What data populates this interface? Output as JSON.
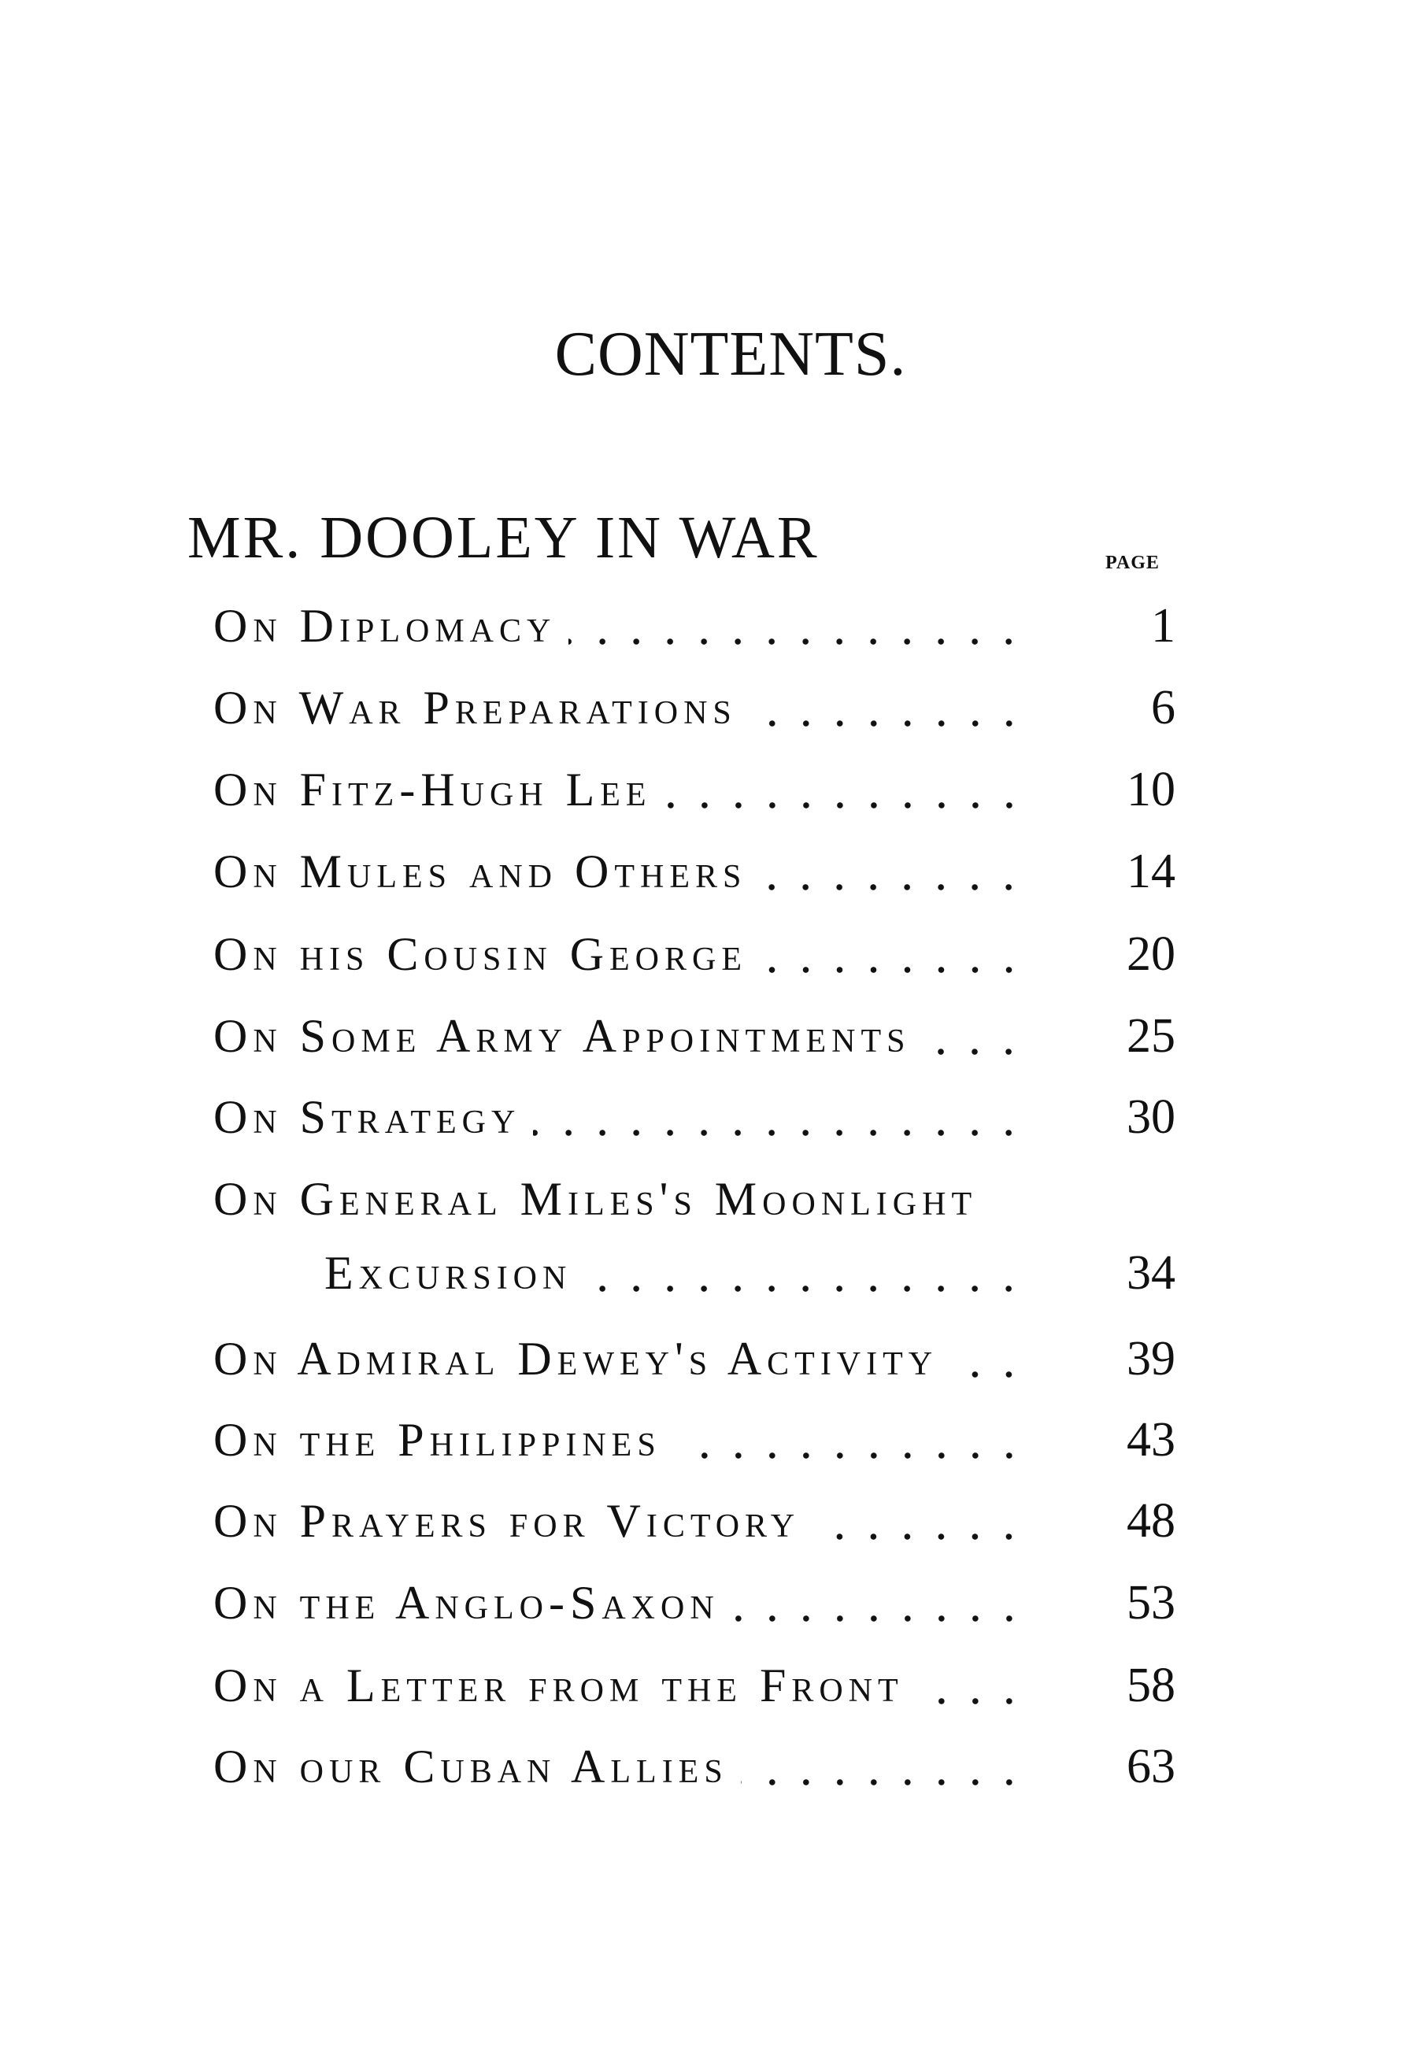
{
  "title": "CONTENTS.",
  "section": {
    "heading": "MR. DOOLEY IN WAR",
    "page_label": "PAGE"
  },
  "entries": [
    {
      "label": "On Diplomacy",
      "page": "1"
    },
    {
      "label": "On War Preparations",
      "page": "6"
    },
    {
      "label": "On Fitz-Hugh Lee",
      "page": "10"
    },
    {
      "label": "On Mules and Others",
      "page": "14"
    },
    {
      "label": "On his Cousin George",
      "page": "20"
    },
    {
      "label": "On Some Army Appointments",
      "page": "25"
    },
    {
      "label": "On Strategy",
      "page": "30"
    },
    {
      "label": "On General Miles's Moonlight",
      "label_cont": "Excursion",
      "page": "34"
    },
    {
      "label": "On Admiral Dewey's Activity",
      "page": "39"
    },
    {
      "label": "On the Philippines",
      "page": "43"
    },
    {
      "label": "On Prayers for Victory",
      "page": "48"
    },
    {
      "label": "On the Anglo-Saxon",
      "page": "53"
    },
    {
      "label": "On a Letter from the Front",
      "page": "58"
    },
    {
      "label": "On our Cuban Allies",
      "page": "63"
    }
  ]
}
